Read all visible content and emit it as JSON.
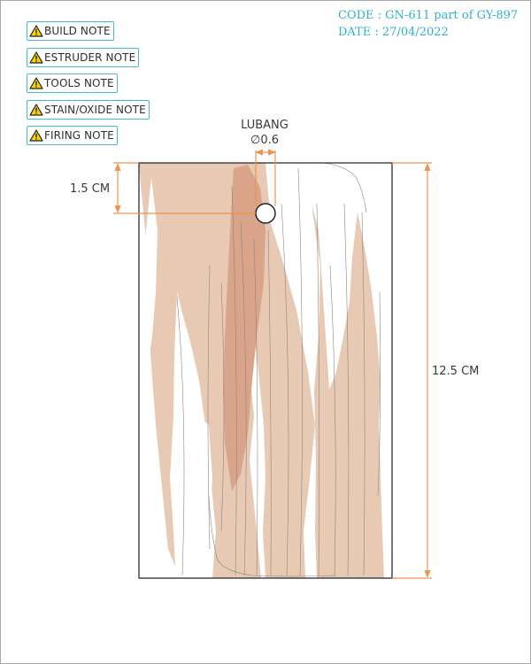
{
  "notes": [
    {
      "label": "BUILD NOTE",
      "icon": "warning-icon"
    },
    {
      "label": "ESTRUDER NOTE",
      "icon": "warning-icon"
    },
    {
      "label": "TOOLS NOTE",
      "icon": "warning-icon"
    },
    {
      "label": "STAIN/OXIDE NOTE",
      "icon": "warning-icon"
    },
    {
      "label": "FIRING NOTE",
      "icon": "warning-icon"
    }
  ],
  "meta": {
    "code": "CODE : GN-611 part of GY-897",
    "date": "DATE : 27/04/2022"
  },
  "drawing": {
    "hole_label": "LUBANG",
    "hole_size": "∅0.6",
    "top_offset": "1.5 CM",
    "height": "12.5 CM"
  },
  "colors": {
    "accent": "#46b9d2",
    "dimension": "#f0924a",
    "glaze_light": "#e7c9b4",
    "glaze_dark": "#d9a48a",
    "warning": "#f5d300"
  }
}
